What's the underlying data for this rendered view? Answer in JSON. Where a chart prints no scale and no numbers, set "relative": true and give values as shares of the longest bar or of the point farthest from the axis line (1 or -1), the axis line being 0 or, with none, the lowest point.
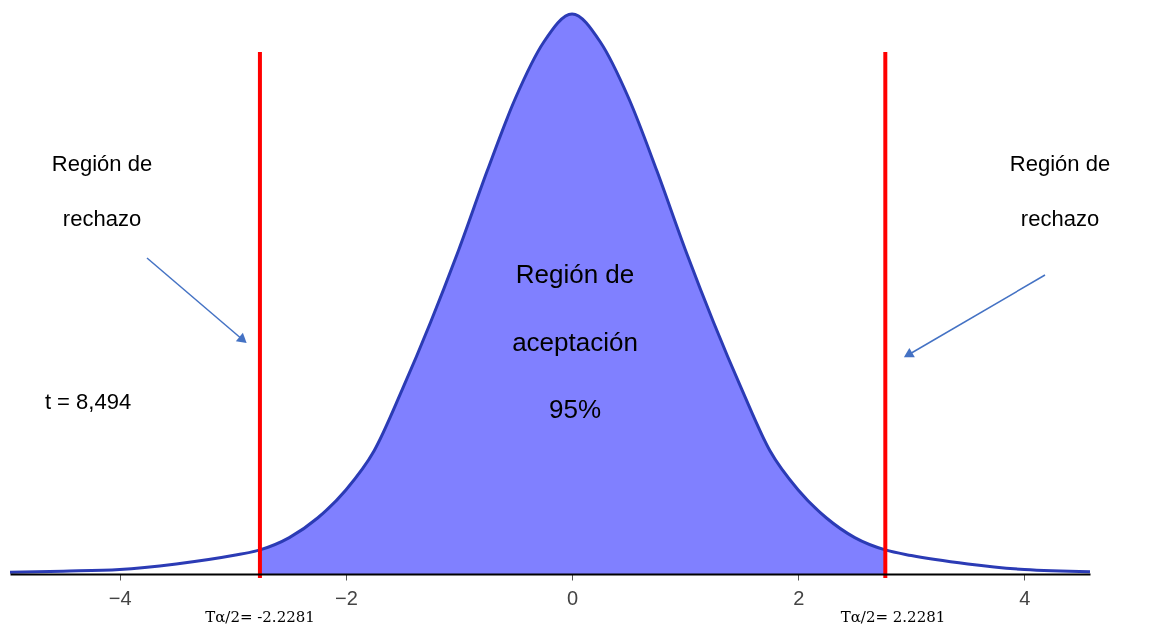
{
  "chart_data": {
    "type": "line",
    "relative": true,
    "xlim": [
      -4.97,
      4.58
    ],
    "xticks": [
      -4,
      -2,
      0,
      2,
      4
    ],
    "grid": false,
    "series": [
      {
        "type": "area",
        "color": "#8080ff",
        "x": [
          -2.76,
          -2.5,
          -2.25,
          -2,
          -1.75,
          -1.5,
          -1.25,
          -1,
          -0.75,
          -0.5,
          -0.25,
          0,
          0.25,
          0.5,
          0.75,
          1,
          1.25,
          1.5,
          1.75,
          2,
          2.25,
          2.5,
          2.77
        ],
        "values": [
          0.043,
          0.065,
          0.1,
          0.15,
          0.22,
          0.33,
          0.45,
          0.58,
          0.72,
          0.85,
          0.95,
          1,
          0.95,
          0.85,
          0.72,
          0.58,
          0.45,
          0.33,
          0.22,
          0.15,
          0.1,
          0.065,
          0.043
        ]
      },
      {
        "color": "#2b3bb5",
        "x": [
          -4.97,
          -4.5,
          -4,
          -3.5,
          -3,
          -2.76,
          -2.5,
          -2.25,
          -2,
          -1.75,
          -1.5,
          -1.25,
          -1,
          -0.75,
          -0.5,
          -0.25,
          0,
          0.25,
          0.5,
          0.75,
          1,
          1.25,
          1.5,
          1.75,
          2,
          2.25,
          2.5,
          2.77,
          3,
          3.5,
          4,
          4.58
        ],
        "values": [
          0.003,
          0.005,
          0.008,
          0.018,
          0.033,
          0.043,
          0.065,
          0.1,
          0.15,
          0.22,
          0.33,
          0.45,
          0.58,
          0.72,
          0.85,
          0.95,
          1,
          0.95,
          0.85,
          0.72,
          0.58,
          0.45,
          0.33,
          0.22,
          0.15,
          0.1,
          0.065,
          0.043,
          0.033,
          0.018,
          0.008,
          0.004
        ]
      }
    ],
    "ref_lines": [
      {
        "axis": "x",
        "value": -2.76,
        "color": "#ff0000"
      },
      {
        "axis": "x",
        "value": 2.77,
        "color": "#ff0000"
      }
    ],
    "annotations": [
      "Región de\nrechazo",
      "Región de\nrechazo",
      "Región de\naceptación\n95%",
      "t = 8,494",
      "Tα/2= -2.2281",
      "Tα/2= 2.2281"
    ]
  }
}
